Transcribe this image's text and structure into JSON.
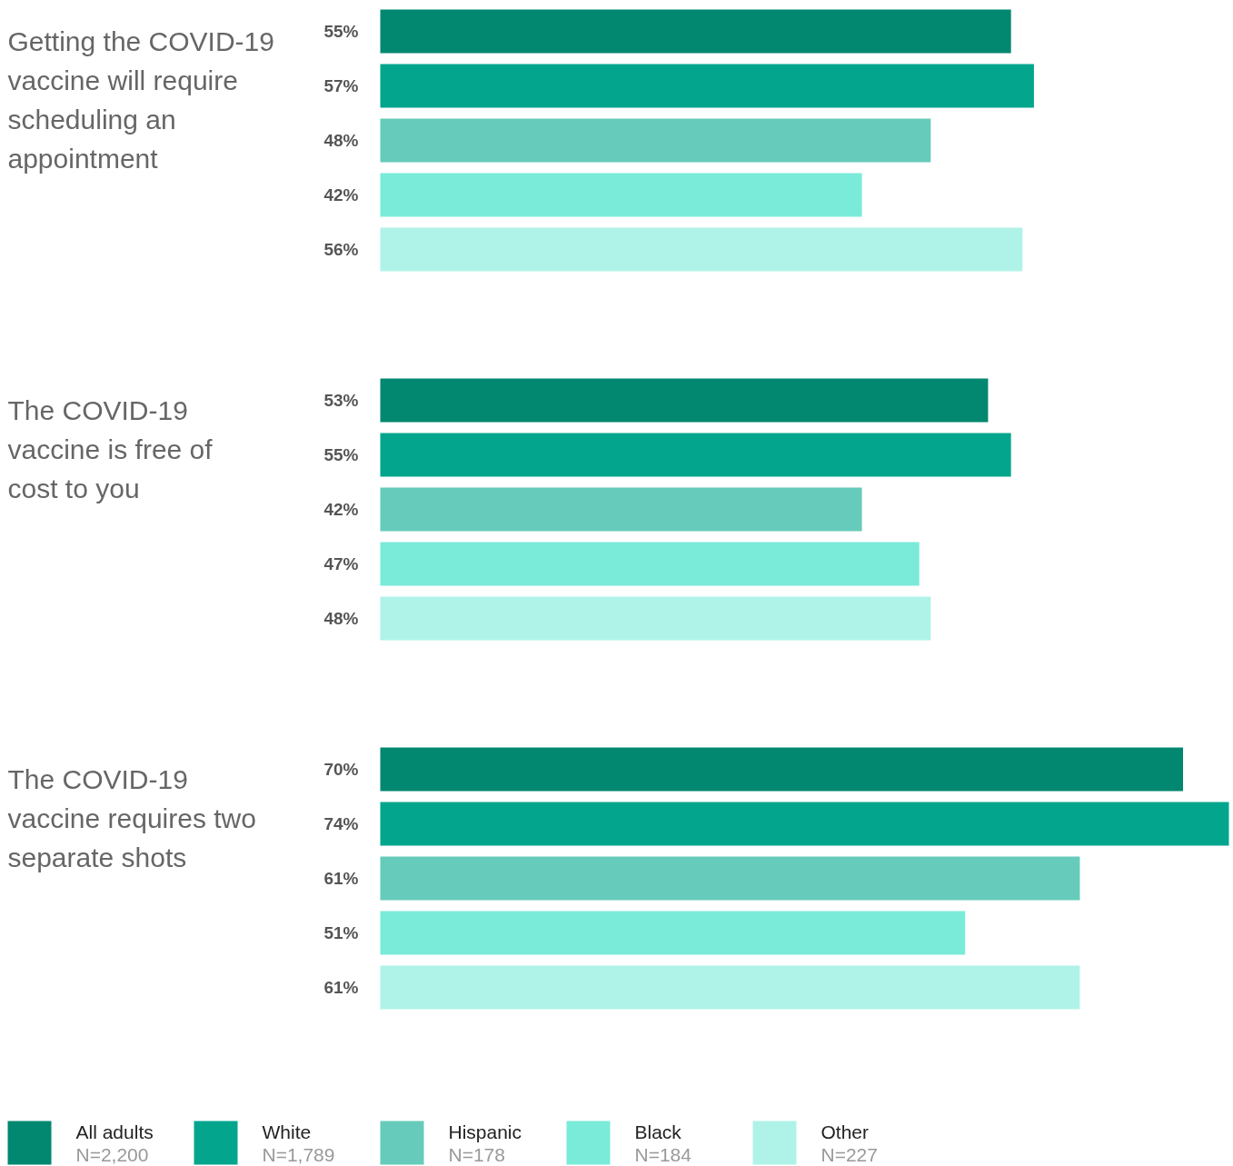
{
  "chart_data": {
    "type": "bar",
    "orientation": "horizontal",
    "legend": "bottom",
    "categories": [
      "Getting the COVID-19\nvaccine will require\nscheduling an\nappointment",
      "The COVID-19\nvaccine is free of\ncost to you",
      "The COVID-19\nvaccine requires two\nseparate shots"
    ],
    "series": [
      {
        "name": "All adults\nN=2,200",
        "color": "#028770",
        "values": [
          55,
          53,
          70
        ],
        "value_labels": [
          "55%",
          "53%",
          "70%"
        ]
      },
      {
        "name": "White\nN=1,789",
        "color": "#03a68d",
        "values": [
          57,
          55,
          74
        ],
        "value_labels": [
          "57%",
          "55%",
          "74%"
        ]
      },
      {
        "name": "Hispanic\nN=178",
        "color": "#66cbba",
        "values": [
          48,
          42,
          61
        ],
        "value_labels": [
          "48%",
          "42%",
          "61%"
        ]
      },
      {
        "name": "Black\nN=184",
        "color": "#7aebd9",
        "values": [
          42,
          47,
          51
        ],
        "value_labels": [
          "42%",
          "47%",
          "51%"
        ]
      },
      {
        "name": "Other\nN=227",
        "color": "#aff3e8",
        "values": [
          56,
          48,
          61
        ],
        "value_labels": [
          "56%",
          "48%",
          "61%"
        ]
      }
    ]
  }
}
